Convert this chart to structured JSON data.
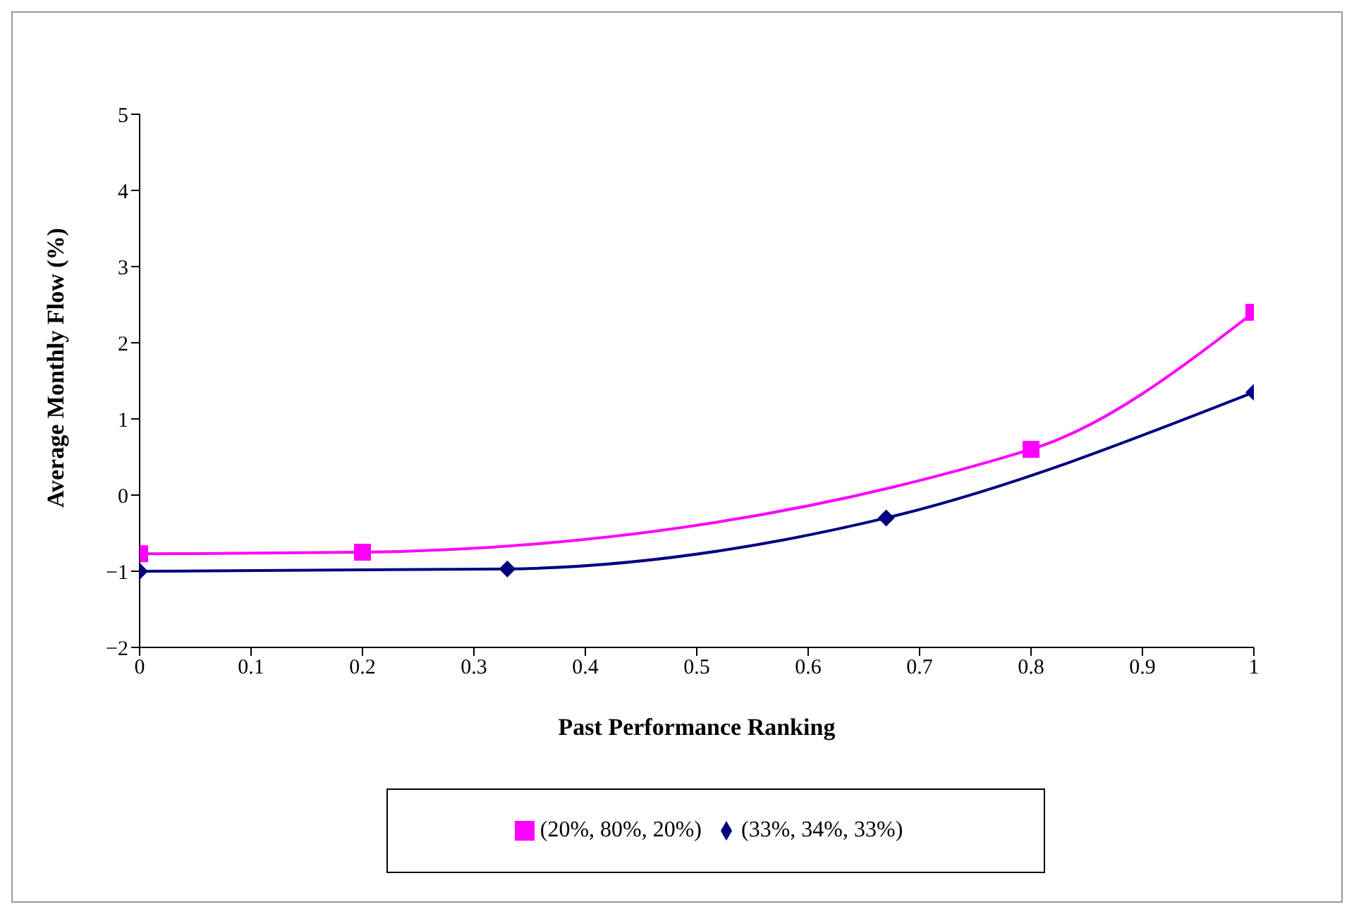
{
  "chart_data": {
    "type": "line",
    "xlabel": "Past Performance Ranking",
    "ylabel": "Average Monthly Flow (%)",
    "series": [
      {
        "name": "(33%, 34%, 33%)",
        "color": "#000080",
        "marker": "diamond",
        "x": [
          0,
          0.33,
          0.67,
          1
        ],
        "values": [
          -1.0,
          -0.97,
          -0.3,
          1.35
        ]
      },
      {
        "name": "(20%, 80%, 20%)",
        "color": "#ff00ff",
        "marker": "square",
        "x": [
          0,
          0.2,
          0.8,
          1
        ],
        "values": [
          -0.77,
          -0.75,
          0.6,
          2.4
        ]
      }
    ],
    "xlim": [
      0,
      1
    ],
    "xticks": [
      0,
      0.1,
      0.2,
      0.3,
      0.4,
      0.5,
      0.6,
      0.7,
      0.8,
      0.9,
      1
    ],
    "ylim": [
      -2,
      5
    ],
    "yticks": [
      -2,
      -1,
      0,
      1,
      2,
      3,
      4,
      5
    ],
    "grid": false,
    "legend": "bottom",
    "line_style": "solid"
  }
}
